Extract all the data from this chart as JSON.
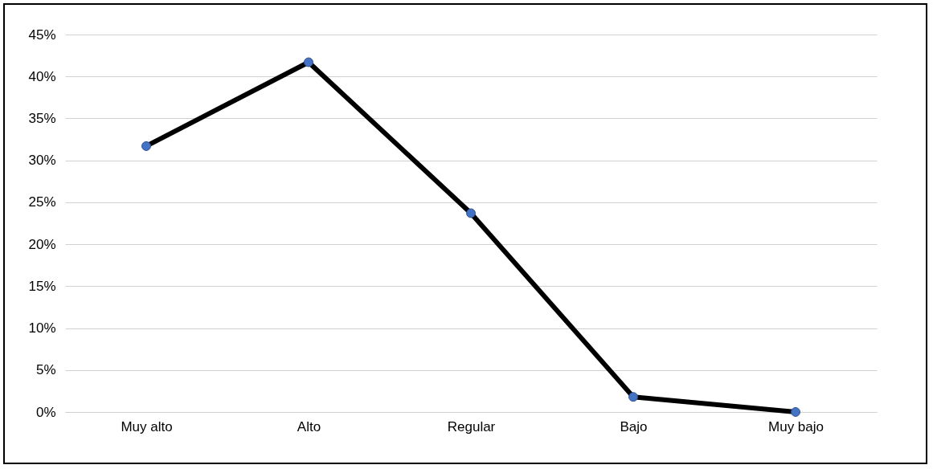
{
  "chart_data": {
    "type": "line",
    "categories": [
      "Muy alto",
      "Alto",
      "Regular",
      "Bajo",
      "Muy bajo"
    ],
    "series": [
      {
        "color": "#000000",
        "values": [
          31.7,
          41.7,
          23.7,
          1.8,
          0
        ]
      }
    ],
    "ylim": [
      0,
      45
    ],
    "yticks": [
      {
        "value": 0,
        "label": "0%"
      },
      {
        "value": 5,
        "label": "5%"
      },
      {
        "value": 10,
        "label": "10%"
      },
      {
        "value": 15,
        "label": "15%"
      },
      {
        "value": 20,
        "label": "20%"
      },
      {
        "value": 25,
        "label": "25%"
      },
      {
        "value": 30,
        "label": "30%"
      },
      {
        "value": 35,
        "label": "35%"
      },
      {
        "value": 40,
        "label": "40%"
      },
      {
        "value": 45,
        "label": "45%"
      }
    ],
    "grid": "y",
    "marker": "circle",
    "line_style": "solid"
  }
}
